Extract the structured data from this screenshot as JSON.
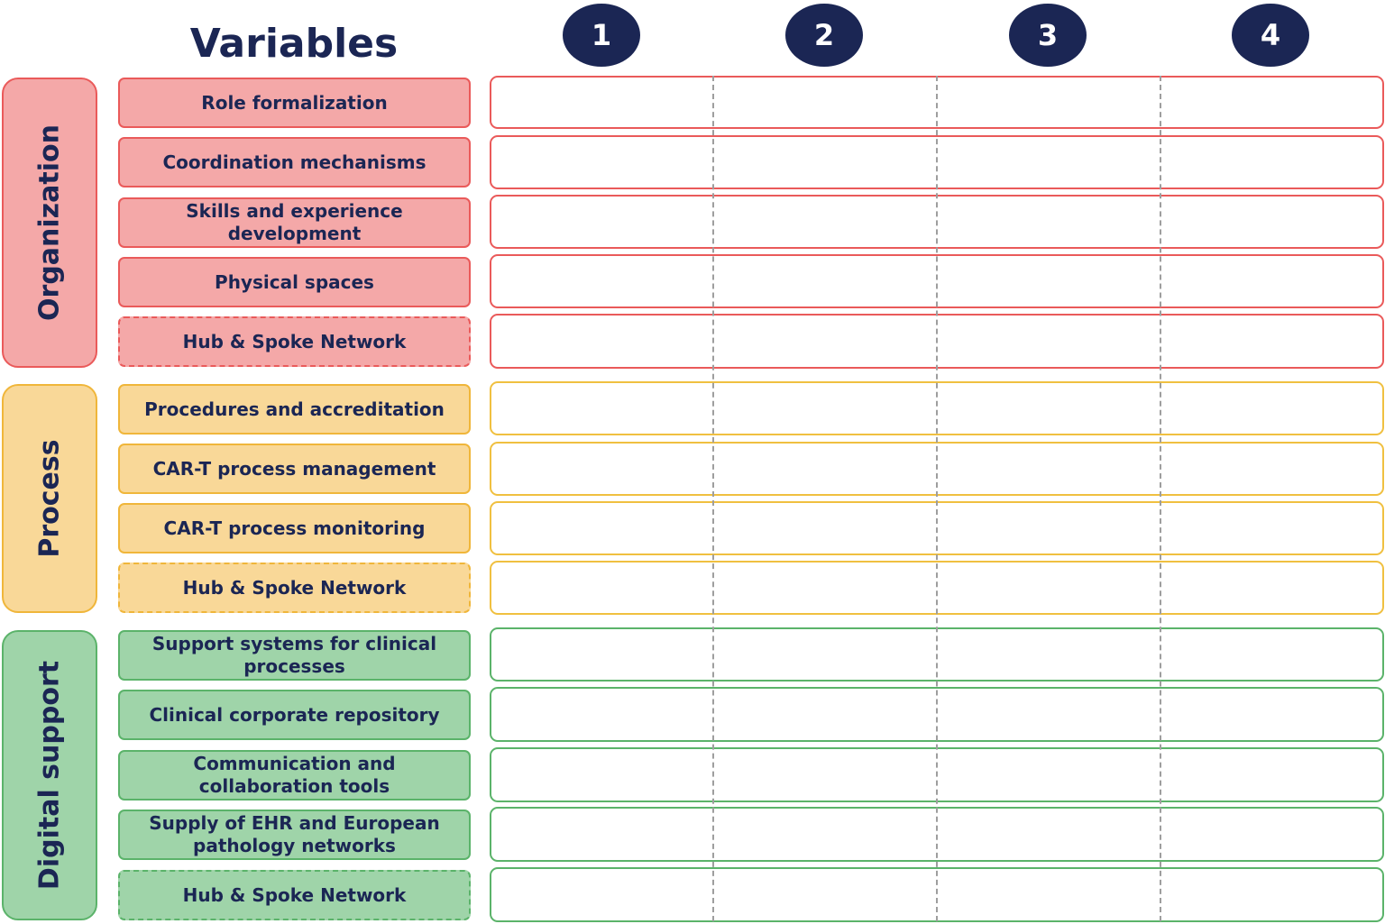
{
  "title": "Variables",
  "columns": [
    "1",
    "2",
    "3",
    "4"
  ],
  "groups": [
    {
      "name": "Organization",
      "variables": [
        "Role formalization",
        "Coordination mechanisms",
        "Skills and experience development",
        "Physical spaces",
        "Hub & Spoke Network"
      ]
    },
    {
      "name": "Process",
      "variables": [
        "Procedures and accreditation",
        "CAR-T process management",
        "CAR-T process monitoring",
        "Hub & Spoke Network"
      ]
    },
    {
      "name": "Digital support",
      "variables": [
        "Support systems for clinical processes",
        "Clinical corporate repository",
        "Communication and collaboration tools",
        "Supply of EHR and European pathology networks",
        "Hub & Spoke Network"
      ]
    }
  ]
}
